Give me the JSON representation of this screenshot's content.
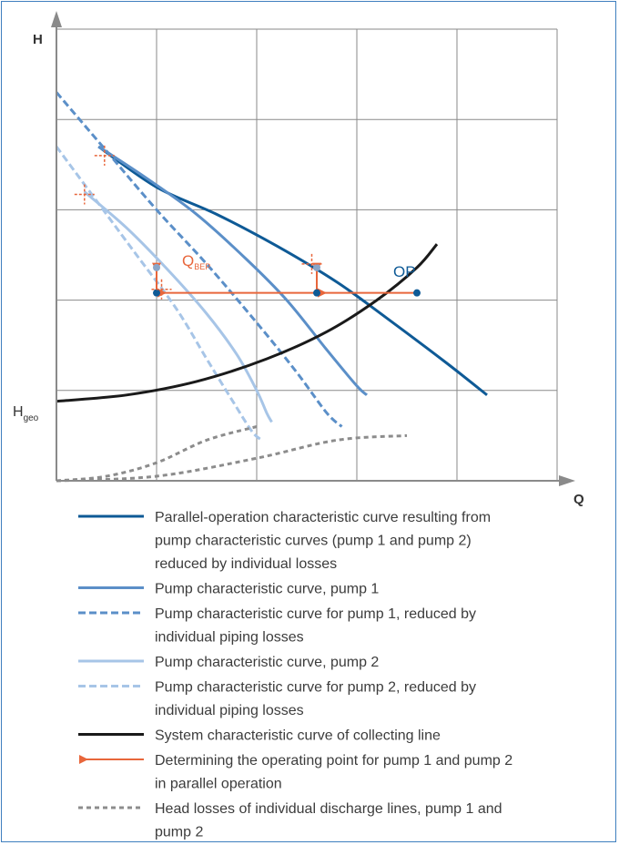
{
  "chart_data": {
    "type": "line",
    "xlabel": "Q",
    "ylabel": "H",
    "xlim": [
      0,
      5
    ],
    "ylim": [
      0,
      5
    ],
    "grid": true,
    "annotations": {
      "op": "OP",
      "qbep_main": "Q",
      "qbep_sub": "BEP",
      "hgeo_main": "H",
      "hgeo_sub": "geo"
    },
    "series": [
      {
        "key": "parallel",
        "style": "solid",
        "color": "#0e5a96",
        "x": [
          0.42,
          1.0,
          1.6,
          2.2,
          2.8,
          3.3,
          3.9,
          4.3
        ],
        "y": [
          3.7,
          3.25,
          2.95,
          2.6,
          2.2,
          1.8,
          1.3,
          0.95
        ]
      },
      {
        "key": "pump1",
        "style": "solid",
        "color": "#5b8fc8",
        "x": [
          0.42,
          0.9,
          1.4,
          1.9,
          2.3,
          2.7,
          3.0,
          3.1
        ],
        "y": [
          3.7,
          3.35,
          2.95,
          2.45,
          2.0,
          1.45,
          1.05,
          0.95
        ]
      },
      {
        "key": "pump1_reduced",
        "style": "dashed",
        "color": "#5b8fc8",
        "x": [
          0.0,
          0.5,
          1.0,
          1.5,
          2.0,
          2.4,
          2.7,
          2.85
        ],
        "y": [
          4.3,
          3.65,
          3.0,
          2.4,
          1.75,
          1.2,
          0.75,
          0.6
        ]
      },
      {
        "key": "pump2",
        "style": "solid",
        "color": "#a7c5e7",
        "x": [
          0.28,
          0.7,
          1.1,
          1.5,
          1.8,
          2.0,
          2.1,
          2.15
        ],
        "y": [
          3.2,
          2.8,
          2.35,
          1.85,
          1.4,
          1.0,
          0.75,
          0.65
        ]
      },
      {
        "key": "pump2_reduced",
        "style": "dashed",
        "color": "#a7c5e7",
        "x": [
          0.0,
          0.4,
          0.8,
          1.2,
          1.5,
          1.75,
          1.95,
          2.05
        ],
        "y": [
          3.7,
          3.1,
          2.5,
          1.9,
          1.35,
          0.9,
          0.55,
          0.45
        ]
      },
      {
        "key": "system",
        "style": "solid",
        "color": "#1a1a1a",
        "x": [
          0.0,
          0.7,
          1.4,
          2.1,
          2.7,
          3.2,
          3.6,
          3.8
        ],
        "y": [
          0.88,
          0.95,
          1.1,
          1.35,
          1.65,
          2.0,
          2.36,
          2.62
        ]
      },
      {
        "key": "losses_pump2",
        "style": "dotted",
        "color": "#8c8c8c",
        "x": [
          0.0,
          0.5,
          1.0,
          1.5,
          2.0
        ],
        "y": [
          0.0,
          0.05,
          0.2,
          0.45,
          0.6
        ]
      },
      {
        "key": "losses_pump1",
        "style": "dotted",
        "color": "#8c8c8c",
        "x": [
          0.0,
          1.0,
          2.0,
          2.8,
          3.5
        ],
        "y": [
          0.0,
          0.05,
          0.25,
          0.45,
          0.5
        ]
      }
    ],
    "operating_arrow": {
      "points_x": [
        3.6,
        2.6,
        1.0
      ],
      "y": 2.08,
      "color": "#e8663b"
    },
    "legend": [
      {
        "key": "parallel",
        "lines": [
          "Parallel-operation characteristic curve resulting from",
          "pump characteristic curves (pump 1 and pump 2)",
          "reduced by individual losses"
        ]
      },
      {
        "key": "pump1",
        "lines": [
          "Pump characteristic curve, pump 1"
        ]
      },
      {
        "key": "pump1_reduced",
        "lines": [
          "Pump characteristic curve for pump 1, reduced by",
          "individual piping losses"
        ]
      },
      {
        "key": "pump2",
        "lines": [
          "Pump characteristic curve, pump 2"
        ]
      },
      {
        "key": "pump2_reduced",
        "lines": [
          "Pump characteristic curve for pump 2, reduced by",
          "individual piping losses"
        ]
      },
      {
        "key": "system",
        "lines": [
          "System characteristic curve of collecting line"
        ]
      },
      {
        "key": "arrow",
        "lines": [
          "Determining the operating point for pump 1 and pump 2",
          "in parallel operation"
        ]
      },
      {
        "key": "losses",
        "lines": [
          "Head losses of individual discharge lines, pump 1 and",
          "pump 2"
        ]
      }
    ]
  }
}
